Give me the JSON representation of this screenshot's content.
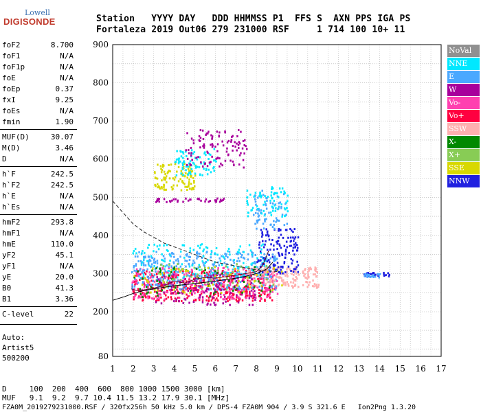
{
  "logo": {
    "lowell": "Lowell",
    "digisonde": "DIGISONDE"
  },
  "header": {
    "labels": "Station   YYYY DAY   DDD HHMMSS P1  FFS S  AXN PPS IGA PS",
    "values": "Fortaleza 2019 Out06 279 231000 RSF     1 714 100 10+ 11"
  },
  "params": [
    {
      "group": 1,
      "name": "foF2",
      "value": "8.700"
    },
    {
      "group": 1,
      "name": "foF1",
      "value": "N/A"
    },
    {
      "group": 1,
      "name": "foF1p",
      "value": "N/A"
    },
    {
      "group": 1,
      "name": "foE",
      "value": "N/A"
    },
    {
      "group": 1,
      "name": "foEp",
      "value": "0.37"
    },
    {
      "group": 1,
      "name": "fxI",
      "value": "9.25"
    },
    {
      "group": 1,
      "name": "foEs",
      "value": "N/A"
    },
    {
      "group": 1,
      "name": "fmin",
      "value": "1.90"
    },
    {
      "group": 2,
      "name": "MUF(D)",
      "value": "30.07"
    },
    {
      "group": 2,
      "name": "M(D)",
      "value": "3.46"
    },
    {
      "group": 2,
      "name": "D",
      "value": "N/A"
    },
    {
      "group": 3,
      "name": "h`F",
      "value": "242.5"
    },
    {
      "group": 3,
      "name": "h`F2",
      "value": "242.5"
    },
    {
      "group": 3,
      "name": "h`E",
      "value": "N/A"
    },
    {
      "group": 3,
      "name": "h`Es",
      "value": "N/A"
    },
    {
      "group": 4,
      "name": "hmF2",
      "value": "293.8"
    },
    {
      "group": 4,
      "name": "hmF1",
      "value": "N/A"
    },
    {
      "group": 4,
      "name": "hmE",
      "value": "110.0"
    },
    {
      "group": 4,
      "name": "yF2",
      "value": "45.1"
    },
    {
      "group": 4,
      "name": "yF1",
      "value": "N/A"
    },
    {
      "group": 4,
      "name": "yE",
      "value": "20.0"
    },
    {
      "group": 4,
      "name": "B0",
      "value": "41.3"
    },
    {
      "group": 4,
      "name": "B1",
      "value": "3.36"
    },
    {
      "group": 5,
      "name": "C-level",
      "value": "22"
    }
  ],
  "auto_block": [
    "Auto:",
    "Artist5",
    "500200"
  ],
  "legend": [
    {
      "label": "NoVal",
      "bg": "#909090",
      "fg": "#ffffff"
    },
    {
      "label": "NNE",
      "bg": "#00e8ff",
      "fg": "#ffffff"
    },
    {
      "label": "E",
      "bg": "#4aa8ff",
      "fg": "#ffffff"
    },
    {
      "label": "W",
      "bg": "#a8009c",
      "fg": "#ffffff"
    },
    {
      "label": "Vo-",
      "bg": "#ff40b0",
      "fg": "#ffffff"
    },
    {
      "label": "Vo+",
      "bg": "#ff0040",
      "fg": "#ffffff"
    },
    {
      "label": "SSW",
      "bg": "#ffb0b0",
      "fg": "#ffffff"
    },
    {
      "label": "X-",
      "bg": "#008800",
      "fg": "#ffffff"
    },
    {
      "label": "X+",
      "bg": "#88cc55",
      "fg": "#ffffff"
    },
    {
      "label": "SSE",
      "bg": "#d8d800",
      "fg": "#ffffff"
    },
    {
      "label": "NNW",
      "bg": "#2020e0",
      "fg": "#ffffff"
    }
  ],
  "footer": {
    "d_row": "D     100  200  400  600  800 1000 1500 3000 [km]",
    "muf_row": "MUF   9.1  9.2  9.7 10.4 11.5 13.2 17.9 30.1 [MHz]",
    "info_row": "FZA0M_2019279231000.RSF / 320fx256h 50 kHz 5.0 km / DPS-4 FZA0M 904 / 3.9 S 321.6 E   Ion2Png 1.3.20"
  },
  "chart_data": {
    "type": "scatter",
    "x_ticks": [
      1,
      2,
      3,
      4,
      5,
      6,
      7,
      8,
      9,
      10,
      11,
      12,
      13,
      14,
      15,
      16,
      17
    ],
    "y_ticks": [
      80,
      200,
      300,
      400,
      500,
      600,
      700,
      800,
      900
    ],
    "xlim": [
      1,
      17
    ],
    "grid": true,
    "legend_placement": "right",
    "profile_curve": {
      "x": [
        1.0,
        1.6,
        2.0,
        2.5,
        3.0,
        3.5,
        4.0,
        5.0,
        6.0,
        7.0,
        7.5,
        8.0,
        8.5,
        8.8
      ],
      "y": [
        230,
        240,
        248,
        255,
        260,
        264,
        268,
        274,
        280,
        288,
        293,
        300,
        312,
        330
      ]
    },
    "dashed_curve": {
      "x": [
        1.0,
        1.5,
        2.0,
        2.5,
        3.0,
        3.5,
        4.0,
        5.0,
        6.0,
        7.0,
        8.0,
        9.0
      ],
      "y": [
        490,
        460,
        430,
        410,
        395,
        380,
        370,
        350,
        330,
        320,
        310,
        305
      ]
    },
    "trace_curve": {
      "x": [
        1.9,
        2.2,
        2.6,
        3.0,
        3.5,
        4.0,
        4.5,
        5.0,
        5.5,
        6.0,
        6.5,
        7.0,
        7.5,
        8.0,
        8.3,
        8.6
      ],
      "y": [
        260,
        255,
        258,
        262,
        268,
        280,
        275,
        285,
        290,
        288,
        292,
        296,
        300,
        305,
        320,
        360
      ]
    },
    "echo_clusters": [
      {
        "series": "Vo+",
        "x": [
          1.9,
          8.9
        ],
        "y": [
          230,
          310
        ],
        "n": 420
      },
      {
        "series": "Vo-",
        "x": [
          1.9,
          9.0
        ],
        "y": [
          235,
          320
        ],
        "n": 300
      },
      {
        "series": "E",
        "x": [
          1.9,
          9.0
        ],
        "y": [
          260,
          360
        ],
        "n": 380
      },
      {
        "series": "NNE",
        "x": [
          1.9,
          8.5
        ],
        "y": [
          290,
          380
        ],
        "n": 140
      },
      {
        "series": "SSW",
        "x": [
          7.5,
          11.0
        ],
        "y": [
          265,
          320
        ],
        "n": 160
      },
      {
        "series": "W",
        "x": [
          3.0,
          8.0
        ],
        "y": [
          220,
          300
        ],
        "n": 120
      },
      {
        "series": "X-",
        "x": [
          2.0,
          8.8
        ],
        "y": [
          240,
          320
        ],
        "n": 60
      },
      {
        "series": "X+",
        "x": [
          3.0,
          8.8
        ],
        "y": [
          260,
          330
        ],
        "n": 50
      },
      {
        "series": "SSE",
        "x": [
          2.0,
          9.5
        ],
        "y": [
          250,
          320
        ],
        "n": 60
      },
      {
        "series": "NNW",
        "x": [
          8.0,
          10.0
        ],
        "y": [
          300,
          420
        ],
        "n": 140
      },
      {
        "series": "NNW",
        "x": [
          13.2,
          14.5
        ],
        "y": [
          295,
          305
        ],
        "n": 24
      },
      {
        "series": "E",
        "x": [
          13.2,
          14.0
        ],
        "y": [
          292,
          302
        ],
        "n": 18
      },
      {
        "series": "E",
        "x": [
          7.8,
          9.5
        ],
        "y": [
          420,
          520
        ],
        "n": 70
      },
      {
        "series": "NNE",
        "x": [
          7.5,
          9.5
        ],
        "y": [
          450,
          530
        ],
        "n": 70
      },
      {
        "series": "SSE",
        "x": [
          3.0,
          5.0
        ],
        "y": [
          520,
          590
        ],
        "n": 110
      },
      {
        "series": "NNE",
        "x": [
          4.0,
          6.0
        ],
        "y": [
          560,
          630
        ],
        "n": 80
      },
      {
        "series": "W",
        "x": [
          4.5,
          7.5
        ],
        "y": [
          580,
          680
        ],
        "n": 110
      },
      {
        "series": "W",
        "x": [
          3.0,
          6.5
        ],
        "y": [
          490,
          500
        ],
        "n": 40
      }
    ]
  }
}
